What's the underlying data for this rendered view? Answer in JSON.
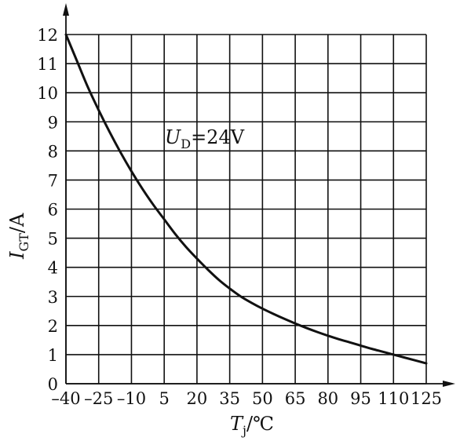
{
  "chart_data": {
    "type": "line",
    "x_ticks": [
      "-40",
      "-25",
      "-10",
      "5",
      "20",
      "35",
      "50",
      "65",
      "80",
      "95",
      "110",
      "125"
    ],
    "y_ticks": [
      "0",
      "1",
      "2",
      "3",
      "4",
      "5",
      "6",
      "7",
      "8",
      "9",
      "10",
      "11",
      "12"
    ],
    "xlim": [
      -40,
      125
    ],
    "ylim": [
      0,
      12
    ],
    "grid": true,
    "xlabel": {
      "main": "T",
      "sub": "j",
      "unit": "/℃"
    },
    "ylabel": {
      "main": "I",
      "sub": "GT",
      "unit": "/A"
    },
    "annotation": {
      "main": "U",
      "sub": "D",
      "rest": "=24V"
    },
    "series": [
      {
        "x": [
          -40,
          -35,
          -30,
          -25,
          -20,
          -15,
          -10,
          -5,
          0,
          5,
          10,
          15,
          20,
          25,
          30,
          35,
          40,
          45,
          50,
          55,
          60,
          65,
          70,
          75,
          80,
          85,
          90,
          95,
          100,
          105,
          110,
          115,
          120,
          125
        ],
        "y": [
          12.0,
          11.1,
          10.2,
          9.4,
          8.65,
          7.95,
          7.3,
          6.7,
          6.15,
          5.65,
          5.15,
          4.7,
          4.3,
          3.92,
          3.57,
          3.27,
          3.0,
          2.78,
          2.58,
          2.4,
          2.23,
          2.07,
          1.92,
          1.78,
          1.65,
          1.53,
          1.42,
          1.31,
          1.2,
          1.1,
          1.0,
          0.9,
          0.8,
          0.7
        ]
      }
    ]
  }
}
